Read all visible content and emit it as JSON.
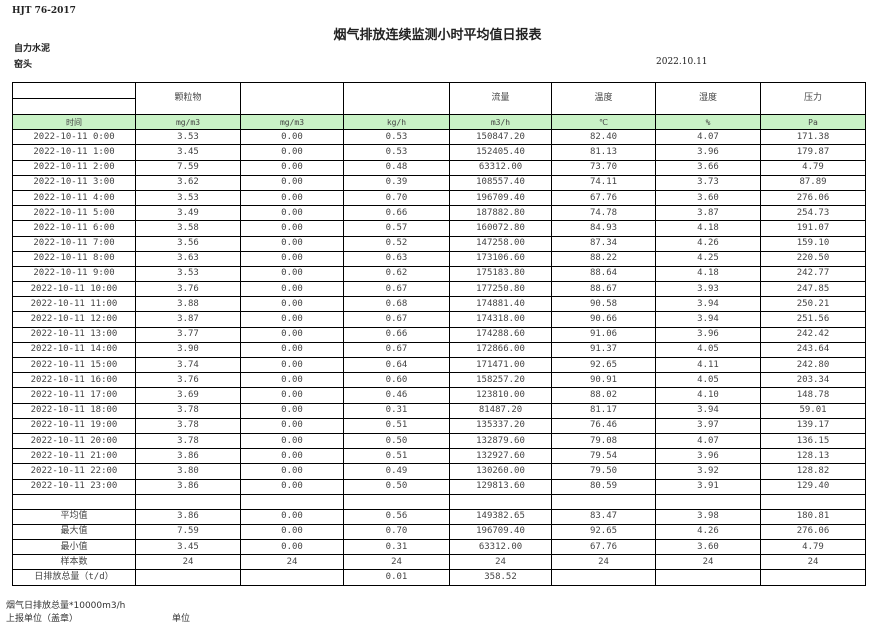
{
  "header": {
    "standard": "HJT  76-2017",
    "title": "烟气排放连续监测小时平均值日报表",
    "company": "自力水泥",
    "site": "窑头",
    "date": "2022.10.11"
  },
  "columns": [
    "颗粒物",
    "",
    "",
    "流量",
    "温度",
    "湿度",
    "压力"
  ],
  "units": [
    "时间",
    "mg/m3",
    "mg/m3",
    "kg/h",
    "m3/h",
    "℃",
    "%",
    "Pa"
  ],
  "rows": [
    [
      "2022-10-11  0:00",
      "3.53",
      "0.00",
      "0.53",
      "150847.20",
      "82.40",
      "4.07",
      "171.38"
    ],
    [
      "2022-10-11  1:00",
      "3.45",
      "0.00",
      "0.53",
      "152405.40",
      "81.13",
      "3.96",
      "179.87"
    ],
    [
      "2022-10-11  2:00",
      "7.59",
      "0.00",
      "0.48",
      "63312.00",
      "73.70",
      "3.66",
      "4.79"
    ],
    [
      "2022-10-11  3:00",
      "3.62",
      "0.00",
      "0.39",
      "108557.40",
      "74.11",
      "3.73",
      "87.89"
    ],
    [
      "2022-10-11  4:00",
      "3.53",
      "0.00",
      "0.70",
      "196709.40",
      "67.76",
      "3.60",
      "276.06"
    ],
    [
      "2022-10-11  5:00",
      "3.49",
      "0.00",
      "0.66",
      "187882.80",
      "74.78",
      "3.87",
      "254.73"
    ],
    [
      "2022-10-11  6:00",
      "3.58",
      "0.00",
      "0.57",
      "160072.80",
      "84.93",
      "4.18",
      "191.07"
    ],
    [
      "2022-10-11  7:00",
      "3.56",
      "0.00",
      "0.52",
      "147258.00",
      "87.34",
      "4.26",
      "159.10"
    ],
    [
      "2022-10-11  8:00",
      "3.63",
      "0.00",
      "0.63",
      "173106.60",
      "88.22",
      "4.25",
      "220.50"
    ],
    [
      "2022-10-11  9:00",
      "3.53",
      "0.00",
      "0.62",
      "175183.80",
      "88.64",
      "4.18",
      "242.77"
    ],
    [
      "2022-10-11 10:00",
      "3.76",
      "0.00",
      "0.67",
      "177250.80",
      "88.67",
      "3.93",
      "247.85"
    ],
    [
      "2022-10-11 11:00",
      "3.88",
      "0.00",
      "0.68",
      "174881.40",
      "90.58",
      "3.94",
      "250.21"
    ],
    [
      "2022-10-11 12:00",
      "3.87",
      "0.00",
      "0.67",
      "174318.00",
      "90.66",
      "3.94",
      "251.56"
    ],
    [
      "2022-10-11 13:00",
      "3.77",
      "0.00",
      "0.66",
      "174288.60",
      "91.06",
      "3.96",
      "242.42"
    ],
    [
      "2022-10-11 14:00",
      "3.90",
      "0.00",
      "0.67",
      "172866.00",
      "91.37",
      "4.05",
      "243.64"
    ],
    [
      "2022-10-11 15:00",
      "3.74",
      "0.00",
      "0.64",
      "171471.00",
      "92.65",
      "4.11",
      "242.80"
    ],
    [
      "2022-10-11 16:00",
      "3.76",
      "0.00",
      "0.60",
      "158257.20",
      "90.91",
      "4.05",
      "203.34"
    ],
    [
      "2022-10-11 17:00",
      "3.69",
      "0.00",
      "0.46",
      "123810.00",
      "88.02",
      "4.10",
      "148.78"
    ],
    [
      "2022-10-11 18:00",
      "3.78",
      "0.00",
      "0.31",
      "81487.20",
      "81.17",
      "3.94",
      "59.01"
    ],
    [
      "2022-10-11 19:00",
      "3.78",
      "0.00",
      "0.51",
      "135337.20",
      "76.46",
      "3.97",
      "139.17"
    ],
    [
      "2022-10-11 20:00",
      "3.78",
      "0.00",
      "0.50",
      "132879.60",
      "79.08",
      "4.07",
      "136.15"
    ],
    [
      "2022-10-11 21:00",
      "3.86",
      "0.00",
      "0.51",
      "132927.60",
      "79.54",
      "3.96",
      "128.13"
    ],
    [
      "2022-10-11 22:00",
      "3.80",
      "0.00",
      "0.49",
      "130260.00",
      "79.50",
      "3.92",
      "128.82"
    ],
    [
      "2022-10-11 23:00",
      "3.86",
      "0.00",
      "0.50",
      "129813.60",
      "80.59",
      "3.91",
      "129.40"
    ]
  ],
  "stats": [
    [
      "平均值",
      "3.86",
      "0.00",
      "0.56",
      "149382.65",
      "83.47",
      "3.98",
      "180.81"
    ],
    [
      "最大值",
      "7.59",
      "0.00",
      "0.70",
      "196709.40",
      "92.65",
      "4.26",
      "276.06"
    ],
    [
      "最小值",
      "3.45",
      "0.00",
      "0.31",
      "63312.00",
      "67.76",
      "3.60",
      "4.79"
    ],
    [
      "样本数",
      "24",
      "24",
      "24",
      "24",
      "24",
      "24",
      "24"
    ],
    [
      "日排放总量（t/d）",
      "",
      "",
      "0.01",
      "358.52",
      "",
      "",
      ""
    ]
  ],
  "footer": {
    "note": "烟气日排放总量*10000m3/h",
    "reporter": "上报单位（盖章）",
    "unit": "单位"
  }
}
